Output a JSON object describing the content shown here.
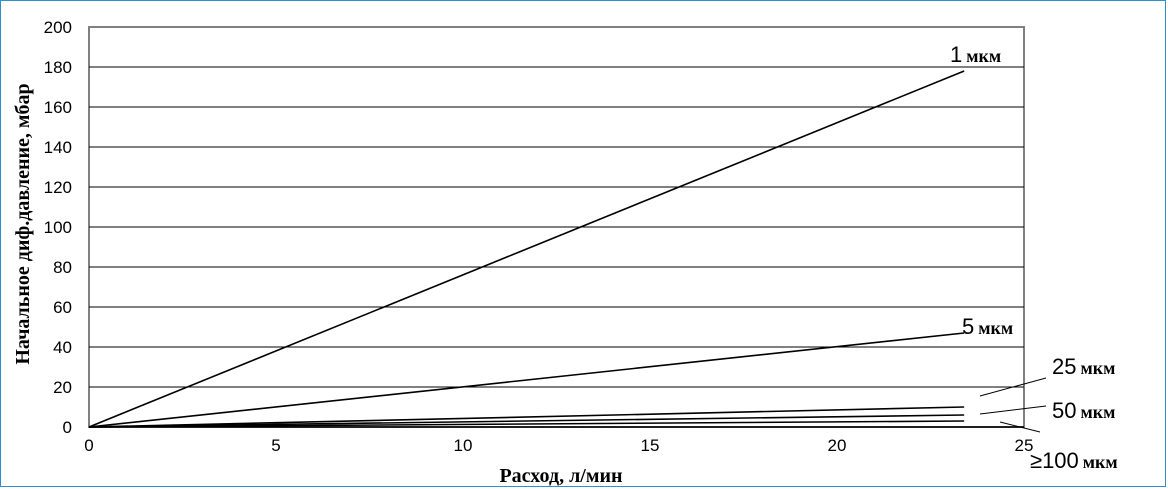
{
  "chart_data": {
    "type": "line",
    "title": "",
    "xlabel": "Расход, л/мин",
    "ylabel": "Начальное диф.давление, мбар",
    "xlim": [
      0,
      25
    ],
    "ylim": [
      0,
      200
    ],
    "xticks": [
      "0",
      "5",
      "10",
      "15",
      "20",
      "25"
    ],
    "yticks": [
      "0",
      "20",
      "40",
      "60",
      "80",
      "100",
      "120",
      "140",
      "160",
      "180",
      "200"
    ],
    "grid": "horizontal",
    "series": [
      {
        "name": "1 мкм",
        "num": "1",
        "unit": "мкм",
        "x": [
          0,
          23.4
        ],
        "y": [
          0,
          178
        ]
      },
      {
        "name": "5 мкм",
        "num": "5",
        "unit": "мкм",
        "x": [
          0,
          23.4
        ],
        "y": [
          0,
          47
        ]
      },
      {
        "name": "25 мкм",
        "num": "25",
        "unit": "мкм",
        "x": [
          0,
          23.4
        ],
        "y": [
          0,
          10
        ]
      },
      {
        "name": "50 мкм",
        "num": "50",
        "unit": "мкм",
        "x": [
          0,
          23.4
        ],
        "y": [
          0,
          6
        ]
      },
      {
        "name": "≥100 мкм",
        "num": "≥100",
        "unit": "мкм",
        "x": [
          0,
          23.4
        ],
        "y": [
          0,
          3
        ]
      }
    ]
  }
}
